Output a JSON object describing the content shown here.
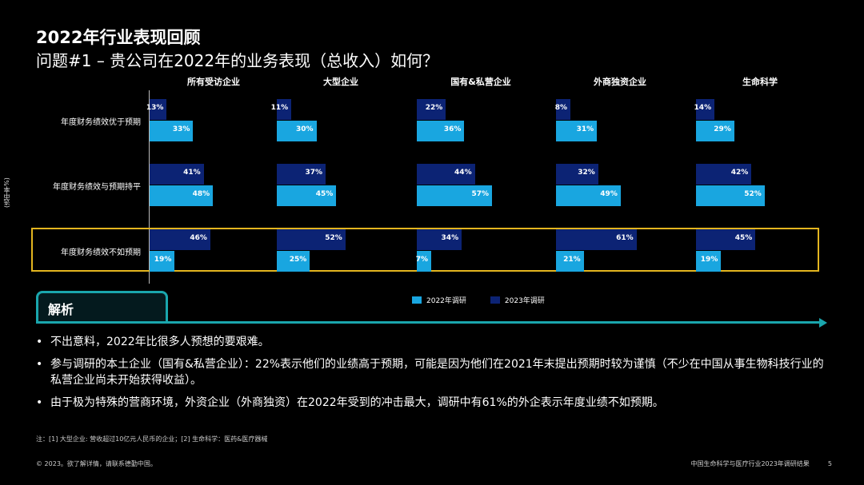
{
  "slide": {
    "title": "2022年行业表现回顾",
    "subtitle": "问题#1 – 贵公司在2022年的业务表现（总收入）如何？",
    "page_number": "5"
  },
  "colors": {
    "c2022": "#19a6e0",
    "c2023": "#0c2374",
    "highlight": "#e3b51f",
    "accent": "#1aa6ad"
  },
  "chart_data": {
    "type": "bar",
    "orientation": "horizontal",
    "ylabel": "(选中率%)",
    "groups": [
      "所有受访企业",
      "大型企业",
      "国有&私营企业",
      "外商独资企业",
      "生命科学"
    ],
    "categories": [
      "年度财务绩效优于预期",
      "年度财务绩效与预期持平",
      "年度财务绩效不如预期"
    ],
    "series": [
      {
        "name": "2022年调研",
        "values": [
          [
            33,
            48,
            19
          ],
          [
            30,
            45,
            25
          ],
          [
            36,
            57,
            7
          ],
          [
            31,
            49,
            21
          ],
          [
            29,
            52,
            19
          ]
        ]
      },
      {
        "name": "2023年调研",
        "values": [
          [
            13,
            41,
            46
          ],
          [
            11,
            37,
            52
          ],
          [
            22,
            44,
            34
          ],
          [
            8,
            32,
            61
          ],
          [
            14,
            42,
            45
          ]
        ]
      }
    ],
    "value_suffix": "%",
    "legend_position": "bottom",
    "highlighted_category": "年度财务绩效不如预期"
  },
  "analysis": {
    "heading": "解析",
    "bullets": [
      "不出意料，2022年比很多人预想的要艰难。",
      "参与调研的本土企业（国有&私营企业）：22%表示他们的业绩高于预期，可能是因为他们在2021年末提出预期时较为谨慎（不少在中国从事生物科技行业的私营企业尚未开始获得收益）。",
      "由于极为特殊的营商环境，外资企业（外商独资）在2022年受到的冲击最大，调研中有61%的外企表示年度业绩不如预期。"
    ]
  },
  "footer": {
    "note": "注：[1] 大型企业: 营收超过10亿元人民币的企业；[2] 生命科学：医药&医疗器械",
    "copyright": "© 2023。欲了解详情，请联系德勤中国。",
    "report": "中国生命科学与医疗行业2023年调研结果"
  }
}
